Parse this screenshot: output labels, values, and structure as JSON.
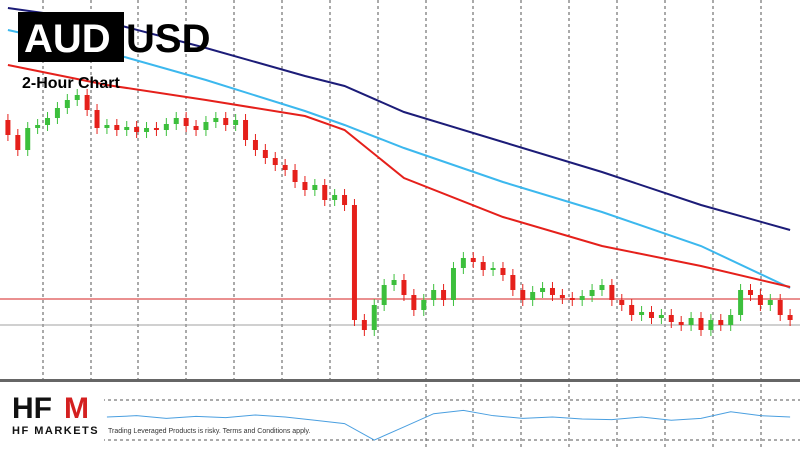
{
  "header": {
    "base": "AUD",
    "quote": "USD",
    "subtitle": "2-Hour Chart"
  },
  "logo": {
    "letters": "HF",
    "accent": "M",
    "name": "HF MARKETS"
  },
  "disclaimer": "Trading Leveraged Products is risky. Terms and Conditions apply.",
  "chart_data": [
    {
      "type": "candlestick",
      "xlim": [
        -0.8,
        80
      ],
      "ylim": [
        0,
        380
      ],
      "up_color": "#3cbf3c",
      "down_color": "#e5201b",
      "open": [
        260,
        245,
        230,
        252,
        255,
        262,
        272,
        280,
        285,
        270,
        252,
        255,
        250,
        253,
        248,
        252,
        250,
        256,
        262,
        254,
        250,
        258,
        262,
        255,
        260,
        240,
        230,
        222,
        215,
        210,
        198,
        190,
        195,
        180,
        185,
        175,
        60,
        50,
        75,
        95,
        100,
        85,
        70,
        80,
        90,
        80,
        112,
        122,
        118,
        110,
        112,
        105,
        90,
        80,
        88,
        92,
        85,
        82,
        80,
        84,
        90,
        95,
        80,
        75,
        65,
        68,
        62,
        65,
        58,
        55,
        62,
        50,
        60,
        55,
        65,
        90,
        85,
        75,
        80,
        65
      ],
      "high": [
        266,
        251,
        258,
        261,
        268,
        278,
        286,
        291,
        291,
        276,
        261,
        261,
        259,
        259,
        258,
        258,
        262,
        268,
        268,
        260,
        264,
        268,
        268,
        266,
        266,
        246,
        236,
        228,
        221,
        216,
        204,
        201,
        201,
        191,
        191,
        181,
        66,
        81,
        101,
        106,
        106,
        91,
        86,
        96,
        96,
        118,
        128,
        128,
        124,
        118,
        118,
        111,
        96,
        94,
        98,
        98,
        91,
        88,
        90,
        96,
        101,
        101,
        86,
        81,
        74,
        74,
        71,
        71,
        64,
        68,
        68,
        66,
        66,
        71,
        96,
        96,
        91,
        86,
        86,
        71
      ],
      "low": [
        239,
        224,
        224,
        246,
        249,
        256,
        266,
        274,
        264,
        246,
        246,
        244,
        244,
        242,
        242,
        244,
        244,
        250,
        248,
        244,
        244,
        252,
        249,
        249,
        234,
        224,
        216,
        209,
        204,
        192,
        184,
        184,
        174,
        174,
        169,
        54,
        44,
        44,
        69,
        89,
        79,
        64,
        64,
        74,
        74,
        74,
        106,
        112,
        104,
        104,
        99,
        84,
        74,
        74,
        82,
        79,
        76,
        74,
        74,
        78,
        84,
        74,
        69,
        59,
        59,
        56,
        56,
        52,
        49,
        49,
        44,
        44,
        49,
        49,
        59,
        79,
        69,
        69,
        59,
        54
      ],
      "close": [
        245,
        230,
        252,
        255,
        262,
        272,
        280,
        285,
        270,
        252,
        255,
        250,
        253,
        248,
        252,
        250,
        256,
        262,
        254,
        250,
        258,
        262,
        255,
        260,
        240,
        230,
        222,
        215,
        210,
        198,
        190,
        195,
        180,
        185,
        175,
        60,
        50,
        75,
        95,
        100,
        85,
        70,
        80,
        90,
        80,
        112,
        122,
        118,
        110,
        112,
        105,
        90,
        80,
        88,
        92,
        85,
        82,
        80,
        84,
        90,
        95,
        80,
        75,
        65,
        68,
        62,
        65,
        58,
        55,
        62,
        50,
        60,
        55,
        65,
        90,
        85,
        75,
        80,
        65,
        60
      ],
      "series": [
        {
          "color": "#1c1c78",
          "x": [
            0,
            10,
            20,
            30,
            34,
            40,
            50,
            60,
            70,
            79
          ],
          "values": [
            372,
            358,
            332,
            304,
            294,
            268,
            238,
            208,
            175,
            150
          ]
        },
        {
          "color": "#3cb8ee",
          "x": [
            0,
            10,
            20,
            30,
            34,
            40,
            50,
            60,
            70,
            79
          ],
          "values": [
            350,
            328,
            300,
            269,
            255,
            232,
            198,
            168,
            134,
            92
          ]
        },
        {
          "color": "#e5201b",
          "x": [
            0,
            10,
            20,
            30,
            34,
            40,
            50,
            60,
            70,
            79
          ],
          "values": [
            315,
            295,
            280,
            264,
            250,
            202,
            163,
            134,
            114,
            93
          ]
        }
      ],
      "levels": [
        {
          "value": 81,
          "color": "#d42020"
        },
        {
          "value": 55,
          "color": "#a0a0a0"
        }
      ]
    },
    {
      "type": "line",
      "xlim": [
        -0.8,
        80
      ],
      "ylim": [
        0,
        100
      ],
      "color": "#4a9fe0",
      "x": [
        10,
        13,
        16,
        19,
        22,
        25,
        28,
        31,
        34,
        37,
        40,
        43,
        46,
        49,
        52,
        55,
        58,
        61,
        64,
        67,
        70,
        73,
        76,
        79
      ],
      "values": [
        50,
        52,
        48,
        51,
        49,
        53,
        50,
        45,
        40,
        15,
        35,
        55,
        60,
        52,
        48,
        50,
        47,
        46,
        50,
        45,
        48,
        58,
        52,
        50
      ]
    }
  ]
}
